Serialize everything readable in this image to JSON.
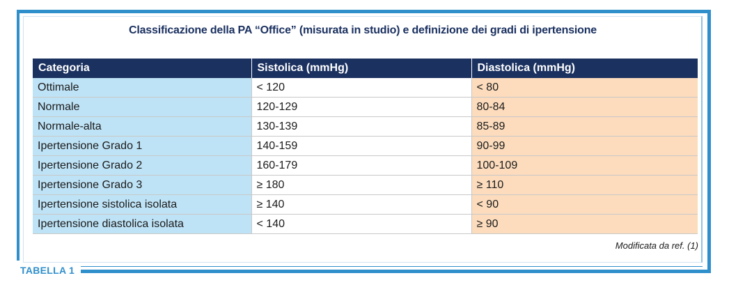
{
  "title": "Classificazione della PA “Office” (misurata in studio) e definizione dei gradi di ipertensione",
  "table": {
    "headers": [
      "Categoria",
      "Sistolica (mmHg)",
      "Diastolica (mmHg)"
    ],
    "rows": [
      [
        "Ottimale",
        "< 120",
        "< 80"
      ],
      [
        "Normale",
        "120-129",
        "80-84"
      ],
      [
        "Normale-alta",
        "130-139",
        "85-89"
      ],
      [
        "Ipertensione Grado 1",
        "140-159",
        "90-99"
      ],
      [
        "Ipertensione Grado 2",
        "160-179",
        "100-109"
      ],
      [
        "Ipertensione Grado 3",
        "≥ 180",
        "≥ 110"
      ],
      [
        "Ipertensione sistolica isolata",
        "≥ 140",
        "< 90"
      ],
      [
        "Ipertensione diastolica isolata",
        "< 140",
        "≥ 90"
      ]
    ]
  },
  "note": "Modificata da ref. (1)",
  "tag": "TABELLA 1",
  "colors": {
    "frame": "#2f8fcb",
    "header_bg": "#1b3160",
    "category_bg": "#bfe3f6",
    "diastolic_bg": "#fcdcbd"
  }
}
